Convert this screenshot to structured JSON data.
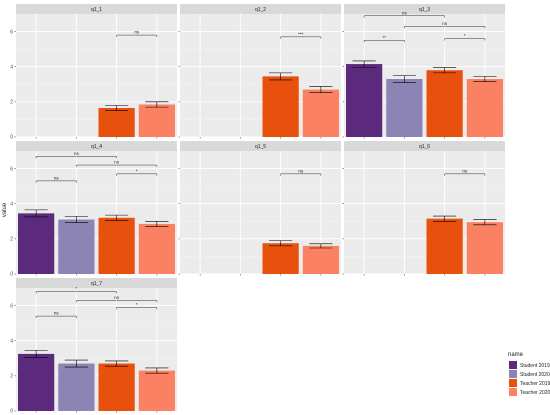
{
  "chart_data": {
    "type": "bar",
    "ylabel": "value",
    "ylim": [
      0,
      7
    ],
    "y_ticks": [
      "0",
      "2",
      "4",
      "6"
    ],
    "y_tick_values": [
      0,
      2,
      4,
      6
    ],
    "grid": true,
    "legend": {
      "title": "name",
      "placement": "right",
      "entries": [
        {
          "name": "Student 2019",
          "color": "#5b2a7c"
        },
        {
          "name": "Student 2020",
          "color": "#8c84b4"
        },
        {
          "name": "Teacher 2019",
          "color": "#e8500e"
        },
        {
          "name": "Teacher 2020",
          "color": "#fa8262"
        }
      ]
    },
    "categories": [
      "Student 2019",
      "Student 2020",
      "Teacher 2019",
      "Teacher 2020"
    ],
    "colors": [
      "#5b2a7c",
      "#8c84b4",
      "#e8500e",
      "#fa8262"
    ],
    "panels": [
      {
        "name": "q1_1",
        "values": [
          null,
          null,
          1.65,
          1.85
        ],
        "errors": [
          null,
          null,
          0.15,
          0.15
        ],
        "comparisons": [
          {
            "from": 2,
            "to": 3,
            "label": "ns",
            "y": 5.8
          }
        ]
      },
      {
        "name": "q1_2",
        "values": [
          null,
          null,
          3.45,
          2.7
        ],
        "errors": [
          null,
          null,
          0.2,
          0.18
        ],
        "comparisons": [
          {
            "from": 2,
            "to": 3,
            "label": "***",
            "y": 5.7
          }
        ]
      },
      {
        "name": "q1_3",
        "values": [
          4.15,
          3.3,
          3.8,
          3.3
        ],
        "errors": [
          0.18,
          0.2,
          0.15,
          0.15
        ],
        "comparisons": [
          {
            "from": 0,
            "to": 1,
            "label": "**",
            "y": 5.5
          },
          {
            "from": 2,
            "to": 3,
            "label": "*",
            "y": 5.6
          },
          {
            "from": 0,
            "to": 2,
            "label": "ns",
            "y": 6.9
          },
          {
            "from": 1,
            "to": 3,
            "label": "ns",
            "y": 6.3
          }
        ]
      },
      {
        "name": "q1_4",
        "values": [
          3.45,
          3.1,
          3.2,
          2.85
        ],
        "errors": [
          0.2,
          0.18,
          0.15,
          0.15
        ],
        "comparisons": [
          {
            "from": 0,
            "to": 1,
            "label": "ns",
            "y": 5.3
          },
          {
            "from": 2,
            "to": 3,
            "label": "*",
            "y": 5.7
          },
          {
            "from": 0,
            "to": 2,
            "label": "ns",
            "y": 6.7
          },
          {
            "from": 1,
            "to": 3,
            "label": "ns",
            "y": 6.2
          }
        ]
      },
      {
        "name": "q1_5",
        "values": [
          null,
          null,
          1.75,
          1.6
        ],
        "errors": [
          null,
          null,
          0.15,
          0.12
        ],
        "comparisons": [
          {
            "from": 2,
            "to": 3,
            "label": "ns",
            "y": 5.7
          }
        ]
      },
      {
        "name": "q1_6",
        "values": [
          null,
          null,
          3.15,
          2.95
        ],
        "errors": [
          null,
          null,
          0.15,
          0.15
        ],
        "comparisons": [
          {
            "from": 2,
            "to": 3,
            "label": "ns",
            "y": 5.7
          }
        ]
      },
      {
        "name": "q1_7",
        "values": [
          3.25,
          2.7,
          2.7,
          2.3
        ],
        "errors": [
          0.2,
          0.2,
          0.15,
          0.15
        ],
        "comparisons": [
          {
            "from": 0,
            "to": 1,
            "label": "ns",
            "y": 5.4
          },
          {
            "from": 2,
            "to": 3,
            "label": "*",
            "y": 5.9
          },
          {
            "from": 0,
            "to": 2,
            "label": "*",
            "y": 6.8
          },
          {
            "from": 1,
            "to": 3,
            "label": "ns",
            "y": 6.3
          }
        ]
      }
    ]
  }
}
